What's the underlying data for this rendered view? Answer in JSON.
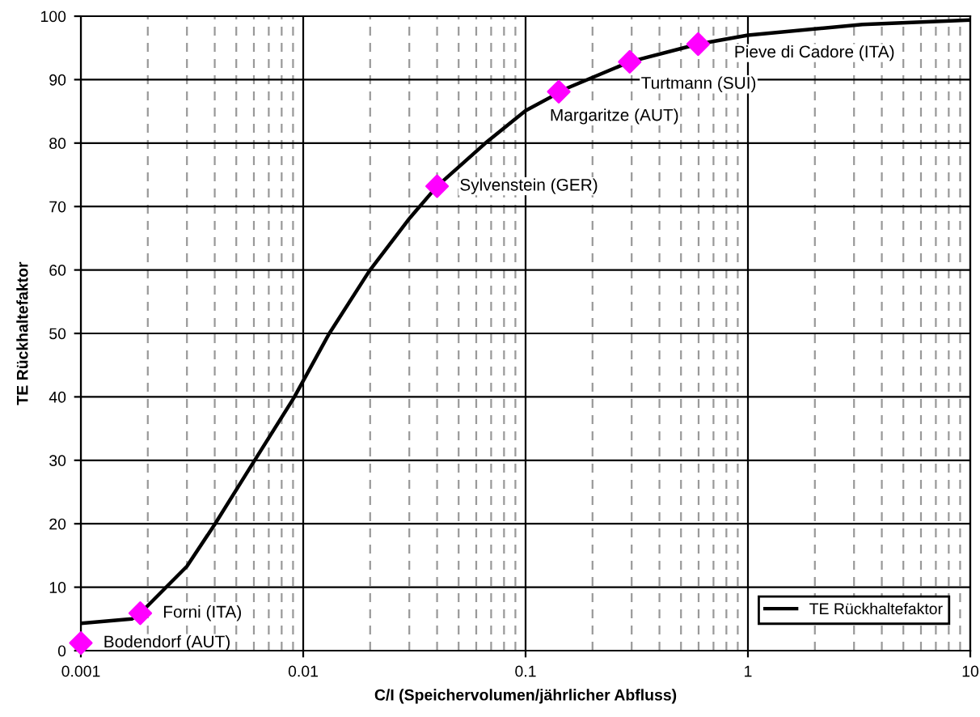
{
  "chart_data": {
    "type": "line",
    "xlabel": "C/I (Speichervolumen/jährlicher Abfluss)",
    "ylabel": "TE Rückhaltefaktor",
    "log": "x",
    "xlim": [
      0.001,
      10
    ],
    "xticks": [
      0.001,
      0.01,
      0.1,
      1,
      10
    ],
    "ylim": [
      0,
      100
    ],
    "yticks": [
      0,
      10,
      20,
      30,
      40,
      50,
      60,
      70,
      80,
      90,
      100
    ],
    "grid": true,
    "legend": "bottom right",
    "series": [
      {
        "name": "TE Rückhaltefaktor",
        "color": "#000000",
        "marker": "none",
        "x": [
          0.001,
          0.0017,
          0.00185,
          0.003,
          0.004,
          0.006,
          0.0091,
          0.013,
          0.0198,
          0.03,
          0.04,
          0.066,
          0.1,
          0.129,
          0.141,
          0.294,
          0.597,
          1,
          3.27,
          10
        ],
        "values": [
          4.3,
          5,
          5.9,
          13.3,
          19.9,
          29.8,
          39.9,
          49.8,
          59.8,
          68.1,
          73.2,
          80,
          85.1,
          87.2,
          88.1,
          92.8,
          95.6,
          97,
          98.7,
          99.4
        ]
      },
      {
        "type": "scatter",
        "color": "#ff00ff",
        "marker": "diamond",
        "x": [
          0.001,
          0.00185,
          0.04,
          0.141,
          0.294,
          0.597
        ],
        "values": [
          1.2,
          5.9,
          73.2,
          88.1,
          92.8,
          95.6
        ]
      }
    ],
    "annotations": [
      {
        "text": "Bodendorf (AUT)",
        "x": 0.001,
        "y": 1.2
      },
      {
        "text": "Forni (ITA)",
        "x": 0.00185,
        "y": 5.9
      },
      {
        "text": "Sylvenstein (GER)",
        "x": 0.04,
        "y": 73.2
      },
      {
        "text": "Margaritze (AUT)",
        "x": 0.141,
        "y": 88.1
      },
      {
        "text": "Turtmann (SUI)",
        "x": 0.294,
        "y": 92.8
      },
      {
        "text": "Pieve di Cadore (ITA)",
        "x": 0.597,
        "y": 95.6
      }
    ]
  }
}
